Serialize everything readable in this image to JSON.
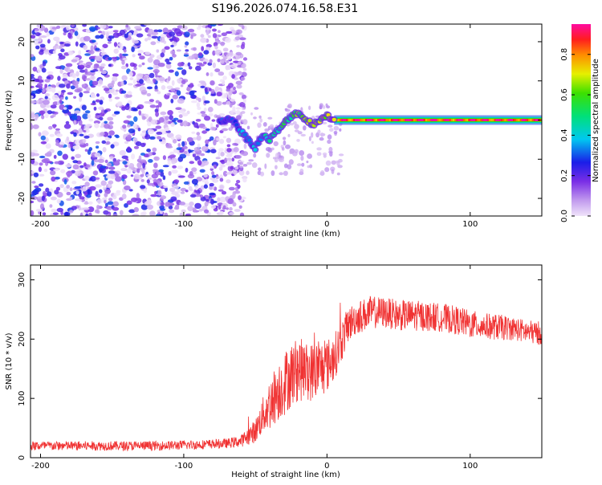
{
  "title": "S196.2026.074.16.58.E31",
  "spectrogram": {
    "xlabel": "Height of straight line (km)",
    "ylabel": "Frequency (Hz)",
    "xlim": [
      -207,
      150
    ],
    "ylim": [
      -24.5,
      24.5
    ],
    "xticks": [
      -200,
      -100,
      0,
      100
    ],
    "yticks": [
      -20,
      -10,
      0,
      10,
      20
    ],
    "colorbar": {
      "label": "Normalized spectral amplitude",
      "range": [
        0.0,
        0.95
      ],
      "ticks": [
        "0.0",
        "0.2",
        "0.4",
        "0.6",
        "0.8"
      ],
      "tick_values": [
        0.0,
        0.2,
        0.4,
        0.6,
        0.8
      ]
    }
  },
  "snr": {
    "xlabel": "Height of straight line (km)",
    "ylabel": "SNR (10 * v/v)",
    "xlim": [
      -207,
      150
    ],
    "ylim": [
      0,
      325
    ],
    "xticks": [
      -200,
      -100,
      0,
      100
    ],
    "yticks": [
      0,
      100,
      200,
      300
    ],
    "color": "#f03232"
  },
  "chart_data": [
    {
      "type": "heatmap",
      "title": "S196.2026.074.16.58.E31",
      "xlabel": "Height of straight line (km)",
      "ylabel": "Frequency (Hz)",
      "xlim": [
        -207,
        150
      ],
      "ylim": [
        -24.5,
        24.5
      ],
      "colorbar_label": "Normalized spectral amplitude",
      "colorbar_range": [
        0.0,
        0.95
      ],
      "signal_track": {
        "x": [
          -75,
          -65,
          -60,
          -55,
          -50,
          -45,
          -40,
          -35,
          -30,
          -25,
          -20,
          -15,
          -10,
          -5,
          0,
          5,
          10,
          30,
          60,
          90,
          120,
          150
        ],
        "freq": [
          0,
          0,
          -3,
          -5,
          -7,
          -4,
          -5,
          -3,
          -1,
          1,
          2,
          0,
          -1,
          0,
          1,
          0,
          0,
          0,
          0,
          0,
          0,
          0
        ],
        "amplitude": [
          0.3,
          0.3,
          0.4,
          0.35,
          0.35,
          0.4,
          0.45,
          0.5,
          0.5,
          0.55,
          0.6,
          0.6,
          0.65,
          0.7,
          0.8,
          0.9,
          0.92,
          0.95,
          0.95,
          0.93,
          0.95,
          0.9
        ]
      },
      "noise_region": {
        "x": [
          -207,
          -65
        ],
        "amplitude_range": [
          0.0,
          0.25
        ]
      }
    },
    {
      "type": "line",
      "xlabel": "Height of straight line (km)",
      "ylabel": "SNR (10 * v/v)",
      "xlim": [
        -207,
        150
      ],
      "ylim": [
        0,
        325
      ],
      "series": [
        {
          "name": "SNR",
          "x": [
            -207,
            -180,
            -150,
            -120,
            -90,
            -70,
            -60,
            -50,
            -45,
            -40,
            -35,
            -30,
            -25,
            -20,
            -15,
            -10,
            -5,
            0,
            5,
            10,
            15,
            20,
            30,
            40,
            50,
            60,
            70,
            80,
            90,
            100,
            110,
            120,
            130,
            140,
            150
          ],
          "values": [
            20,
            20,
            20,
            20,
            22,
            24,
            28,
            45,
            70,
            90,
            110,
            125,
            140,
            150,
            145,
            145,
            150,
            155,
            170,
            195,
            225,
            235,
            245,
            245,
            240,
            240,
            238,
            236,
            232,
            225,
            222,
            220,
            218,
            212,
            210
          ],
          "noise_amplitude": [
            8,
            8,
            8,
            8,
            8,
            8,
            10,
            20,
            30,
            45,
            50,
            55,
            55,
            55,
            50,
            50,
            50,
            45,
            40,
            35,
            30,
            28,
            28,
            26,
            26,
            26,
            25,
            24,
            24,
            24,
            22,
            22,
            20,
            20,
            20
          ]
        }
      ]
    }
  ]
}
